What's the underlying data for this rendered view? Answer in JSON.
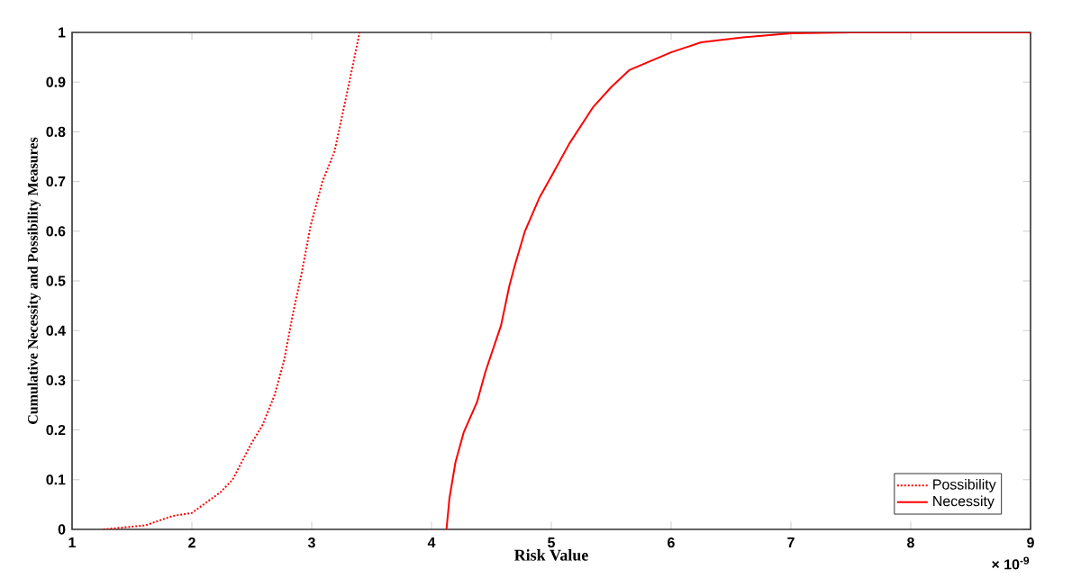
{
  "chart_data": {
    "type": "line",
    "xlabel": "Risk Value",
    "ylabel": "Cumulative Necessity and Possibility Measures",
    "xlim": [
      1,
      9
    ],
    "ylim": [
      0,
      1
    ],
    "xticks": [
      1,
      2,
      3,
      4,
      5,
      6,
      7,
      8,
      9
    ],
    "yticks": [
      0,
      0.1,
      0.2,
      0.3,
      0.4,
      0.5,
      0.6,
      0.7,
      0.8,
      0.9,
      1
    ],
    "legend": "bottom right",
    "grid": false,
    "marker": "none",
    "annotations": [
      "× 10$^{-9}$"
    ],
    "series": [
      {
        "name": "Possibility",
        "color": "#ff0000",
        "line_style": "dotted",
        "x": [
          1.26,
          1.61,
          1.84,
          2.0,
          2.24,
          2.34,
          2.49,
          2.59,
          2.69,
          2.77,
          2.84,
          2.92,
          2.99,
          3.09,
          3.19,
          3.27,
          3.34,
          3.4
        ],
        "values": [
          0,
          0.008,
          0.027,
          0.033,
          0.075,
          0.1,
          0.17,
          0.21,
          0.27,
          0.34,
          0.43,
          0.52,
          0.61,
          0.7,
          0.76,
          0.85,
          0.93,
          1.0
        ]
      },
      {
        "name": "Necessity",
        "color": "#ff0000",
        "line_style": "solid",
        "x": [
          4.125,
          4.15,
          4.2,
          4.27,
          4.38,
          4.45,
          4.58,
          4.65,
          4.7,
          4.78,
          4.9,
          5.0,
          5.15,
          5.35,
          5.5,
          5.65,
          6.0,
          6.25,
          6.6,
          7.0,
          7.5,
          9.0
        ],
        "values": [
          0,
          0.063,
          0.135,
          0.196,
          0.256,
          0.317,
          0.41,
          0.49,
          0.535,
          0.6,
          0.667,
          0.71,
          0.776,
          0.85,
          0.89,
          0.924,
          0.96,
          0.98,
          0.99,
          0.998,
          1.0,
          1.0
        ]
      }
    ]
  }
}
